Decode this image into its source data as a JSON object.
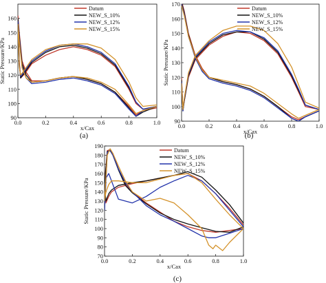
{
  "colors": {
    "Datum": "#c0392b",
    "NEW_S_10%": "#111111",
    "NEW_S_12%": "#2233aa",
    "NEW_S_15%": "#d4922a"
  },
  "chart_data": [
    {
      "type": "line",
      "panel_label": "(a)",
      "xlabel": "x/Cax",
      "ylabel": "Static Pressure/KPa",
      "xlim": [
        0,
        1.0
      ],
      "ylim": [
        90,
        170
      ],
      "xticks": [
        "0.0",
        "0.2",
        "0.4",
        "0.6",
        "0.8",
        "1.0"
      ],
      "yticks": [
        "90",
        "100",
        "110",
        "120",
        "130",
        "140",
        "150",
        "160"
      ],
      "legend_position": "top-right",
      "series": [
        {
          "name": "Datum",
          "color": "#c0392b",
          "x": [
            0,
            0.01,
            0.03,
            0.06,
            0.1,
            0.2,
            0.3,
            0.4,
            0.5,
            0.6,
            0.7,
            0.8,
            0.85,
            0.9,
            1.0
          ],
          "y": [
            162,
            150,
            130,
            122,
            116,
            116,
            118,
            119,
            117,
            114,
            108,
            98,
            92,
            95,
            97
          ]
        },
        {
          "name": "Datum",
          "color": "#c0392b",
          "x": [
            0,
            0.01,
            0.02,
            0.05,
            0.1,
            0.2,
            0.3,
            0.4,
            0.5,
            0.6,
            0.7,
            0.8,
            0.85,
            0.9,
            1.0
          ],
          "y": [
            162,
            130,
            118,
            121,
            128,
            134,
            138,
            140,
            138,
            134,
            126,
            110,
            100,
            96,
            98
          ]
        },
        {
          "name": "NEW_S_10%",
          "color": "#111111",
          "x": [
            0,
            0.01,
            0.03,
            0.06,
            0.1,
            0.2,
            0.3,
            0.4,
            0.5,
            0.6,
            0.7,
            0.8,
            0.85,
            0.9,
            1.0
          ],
          "y": [
            160,
            148,
            128,
            120,
            115,
            116,
            118,
            119,
            117,
            114,
            108,
            97,
            91,
            94,
            98
          ]
        },
        {
          "name": "NEW_S_10%",
          "color": "#111111",
          "x": [
            0,
            0.01,
            0.02,
            0.05,
            0.1,
            0.2,
            0.3,
            0.4,
            0.5,
            0.6,
            0.7,
            0.8,
            0.85,
            0.9,
            1.0
          ],
          "y": [
            160,
            128,
            118,
            122,
            129,
            136,
            140,
            141,
            139,
            135,
            127,
            111,
            101,
            96,
            98
          ]
        },
        {
          "name": "NEW_S_12%",
          "color": "#2233aa",
          "x": [
            0,
            0.01,
            0.03,
            0.06,
            0.1,
            0.2,
            0.3,
            0.4,
            0.5,
            0.6,
            0.7,
            0.8,
            0.85,
            0.9,
            1.0
          ],
          "y": [
            158,
            146,
            126,
            118,
            114,
            115,
            117,
            118,
            116,
            113,
            107,
            96,
            91,
            95,
            98
          ]
        },
        {
          "name": "NEW_S_12%",
          "color": "#2233aa",
          "x": [
            0,
            0.01,
            0.02,
            0.05,
            0.1,
            0.2,
            0.3,
            0.4,
            0.5,
            0.6,
            0.7,
            0.8,
            0.85,
            0.9,
            1.0
          ],
          "y": [
            158,
            127,
            119,
            123,
            130,
            137,
            141,
            142,
            140,
            136,
            128,
            112,
            101,
            96,
            98
          ]
        },
        {
          "name": "NEW_S_15%",
          "color": "#d4922a",
          "x": [
            0,
            0.01,
            0.03,
            0.06,
            0.1,
            0.2,
            0.3,
            0.4,
            0.5,
            0.6,
            0.7,
            0.8,
            0.85,
            0.9,
            1.0
          ],
          "y": [
            156,
            144,
            125,
            118,
            115,
            116,
            118,
            119,
            118,
            115,
            110,
            99,
            93,
            95,
            98
          ]
        },
        {
          "name": "NEW_S_15%",
          "color": "#d4922a",
          "x": [
            0,
            0.01,
            0.02,
            0.05,
            0.1,
            0.2,
            0.3,
            0.4,
            0.5,
            0.6,
            0.7,
            0.8,
            0.85,
            0.9,
            1.0
          ],
          "y": [
            156,
            126,
            120,
            124,
            131,
            138,
            141,
            142,
            142,
            139,
            131,
            115,
            104,
            98,
            99
          ]
        }
      ]
    },
    {
      "type": "line",
      "panel_label": "(b)",
      "xlabel": "x/Cax",
      "ylabel": "Static Pressure/KPa",
      "xlim": [
        0,
        1.0
      ],
      "ylim": [
        90,
        170
      ],
      "xticks": [
        "0.0",
        "0.2",
        "0.4",
        "0.6",
        "0.8",
        "1.0"
      ],
      "yticks": [
        "90",
        "100",
        "110",
        "120",
        "130",
        "140",
        "150",
        "160",
        "170"
      ],
      "legend_position": "top-right",
      "series": [
        {
          "name": "Datum",
          "color": "#c0392b",
          "x": [
            0,
            0.02,
            0.05,
            0.1,
            0.15,
            0.2,
            0.3,
            0.4,
            0.5,
            0.6,
            0.7,
            0.8,
            0.85,
            0.9,
            1.0
          ],
          "y": [
            172,
            165,
            150,
            135,
            126,
            120,
            117,
            115,
            112,
            107,
            100,
            93,
            91,
            93,
            97
          ]
        },
        {
          "name": "Datum",
          "color": "#c0392b",
          "x": [
            0,
            0.01,
            0.02,
            0.05,
            0.1,
            0.15,
            0.2,
            0.3,
            0.4,
            0.5,
            0.6,
            0.7,
            0.8,
            0.85,
            0.9,
            1.0
          ],
          "y": [
            120,
            98,
            104,
            120,
            132,
            137,
            142,
            148,
            151,
            150,
            145,
            136,
            120,
            110,
            100,
            98
          ]
        },
        {
          "name": "NEW_S_10%",
          "color": "#111111",
          "x": [
            0,
            0.02,
            0.05,
            0.1,
            0.15,
            0.2,
            0.3,
            0.4,
            0.5,
            0.6,
            0.7,
            0.8,
            0.85,
            0.9,
            1.0
          ],
          "y": [
            171,
            164,
            149,
            134,
            125,
            120,
            117,
            115,
            112,
            107,
            100,
            92,
            90,
            93,
            97
          ]
        },
        {
          "name": "NEW_S_10%",
          "color": "#111111",
          "x": [
            0,
            0.01,
            0.02,
            0.05,
            0.1,
            0.15,
            0.2,
            0.3,
            0.4,
            0.5,
            0.6,
            0.7,
            0.8,
            0.85,
            0.9,
            1.0
          ],
          "y": [
            118,
            97,
            104,
            121,
            133,
            138,
            143,
            149,
            151,
            151,
            146,
            137,
            121,
            111,
            101,
            98
          ]
        },
        {
          "name": "NEW_S_12%",
          "color": "#2233aa",
          "x": [
            0,
            0.02,
            0.05,
            0.1,
            0.15,
            0.2,
            0.3,
            0.4,
            0.5,
            0.6,
            0.7,
            0.8,
            0.85,
            0.9,
            1.0
          ],
          "y": [
            170,
            163,
            148,
            133,
            124,
            119,
            116,
            114,
            111,
            106,
            99,
            92,
            90,
            93,
            97
          ]
        },
        {
          "name": "NEW_S_12%",
          "color": "#2233aa",
          "x": [
            0,
            0.01,
            0.02,
            0.05,
            0.1,
            0.15,
            0.2,
            0.3,
            0.4,
            0.5,
            0.6,
            0.7,
            0.8,
            0.85,
            0.9,
            1.0
          ],
          "y": [
            117,
            97,
            105,
            122,
            134,
            139,
            144,
            150,
            152,
            151,
            147,
            138,
            122,
            112,
            101,
            98
          ]
        },
        {
          "name": "NEW_S_15%",
          "color": "#d4922a",
          "x": [
            0,
            0.02,
            0.05,
            0.1,
            0.15,
            0.2,
            0.3,
            0.4,
            0.5,
            0.6,
            0.7,
            0.8,
            0.85,
            0.9,
            1.0
          ],
          "y": [
            169,
            162,
            148,
            134,
            125,
            120,
            118,
            116,
            114,
            109,
            102,
            95,
            92,
            94,
            98
          ]
        },
        {
          "name": "NEW_S_15%",
          "color": "#d4922a",
          "x": [
            0,
            0.01,
            0.02,
            0.05,
            0.1,
            0.15,
            0.2,
            0.3,
            0.4,
            0.5,
            0.6,
            0.7,
            0.8,
            0.85,
            0.9,
            1.0
          ],
          "y": [
            116,
            98,
            106,
            123,
            135,
            140,
            145,
            152,
            155,
            155,
            152,
            143,
            127,
            115,
            103,
            99
          ]
        }
      ]
    },
    {
      "type": "line",
      "panel_label": "(c)",
      "xlabel": "x/Cax",
      "ylabel": "Static Pressure/KPa",
      "xlim": [
        0,
        1.0
      ],
      "ylim": [
        70,
        190
      ],
      "xticks": [
        "0.0",
        "0.2",
        "0.4",
        "0.6",
        "0.8",
        "1.0"
      ],
      "yticks": [
        "70",
        "80",
        "90",
        "100",
        "110",
        "120",
        "130",
        "140",
        "150",
        "160",
        "170",
        "180",
        "190"
      ],
      "legend_position": "top-right",
      "series": [
        {
          "name": "Datum",
          "color": "#c0392b",
          "x": [
            0,
            0.02,
            0.04,
            0.06,
            0.1,
            0.15,
            0.2,
            0.3,
            0.4,
            0.5,
            0.6,
            0.7,
            0.8,
            0.9,
            1.0
          ],
          "y": [
            150,
            185,
            186,
            182,
            165,
            148,
            140,
            128,
            118,
            108,
            102,
            98,
            96,
            98,
            100
          ]
        },
        {
          "name": "Datum",
          "color": "#c0392b",
          "x": [
            0,
            0.01,
            0.03,
            0.05,
            0.1,
            0.2,
            0.3,
            0.4,
            0.5,
            0.6,
            0.7,
            0.8,
            0.9,
            1.0
          ],
          "y": [
            150,
            128,
            135,
            140,
            145,
            149,
            152,
            155,
            158,
            160,
            152,
            138,
            122,
            104
          ]
        },
        {
          "name": "NEW_S_10%",
          "color": "#111111",
          "x": [
            0,
            0.02,
            0.04,
            0.06,
            0.1,
            0.15,
            0.2,
            0.3,
            0.4,
            0.5,
            0.6,
            0.7,
            0.8,
            0.9,
            1.0
          ],
          "y": [
            148,
            184,
            185,
            180,
            164,
            147,
            139,
            127,
            117,
            110,
            105,
            101,
            97,
            96,
            102
          ]
        },
        {
          "name": "NEW_S_10%",
          "color": "#111111",
          "x": [
            0,
            0.01,
            0.03,
            0.05,
            0.1,
            0.2,
            0.3,
            0.4,
            0.5,
            0.6,
            0.7,
            0.8,
            0.9,
            1.0
          ],
          "y": [
            148,
            130,
            138,
            142,
            147,
            150,
            152,
            155,
            158,
            162,
            156,
            142,
            126,
            106
          ]
        },
        {
          "name": "NEW_S_12%",
          "color": "#2233aa",
          "x": [
            0,
            0.02,
            0.04,
            0.06,
            0.1,
            0.15,
            0.2,
            0.3,
            0.4,
            0.5,
            0.6,
            0.7,
            0.75,
            0.8,
            0.9,
            1.0
          ],
          "y": [
            120,
            183,
            186,
            180,
            165,
            150,
            140,
            125,
            115,
            108,
            100,
            92,
            90,
            90,
            95,
            100
          ]
        },
        {
          "name": "NEW_S_12%",
          "color": "#2233aa",
          "x": [
            0,
            0.01,
            0.03,
            0.05,
            0.08,
            0.1,
            0.2,
            0.3,
            0.4,
            0.5,
            0.6,
            0.7,
            0.8,
            0.9,
            1.0
          ],
          "y": [
            120,
            155,
            160,
            152,
            140,
            132,
            128,
            135,
            145,
            152,
            158,
            152,
            138,
            120,
            102
          ]
        },
        {
          "name": "NEW_S_15%",
          "color": "#d4922a",
          "x": [
            0,
            0.02,
            0.04,
            0.06,
            0.1,
            0.15,
            0.2,
            0.3,
            0.4,
            0.5,
            0.6,
            0.7,
            0.75,
            0.78,
            0.8,
            0.85,
            0.9,
            1.0
          ],
          "y": [
            130,
            180,
            187,
            182,
            168,
            152,
            140,
            130,
            133,
            128,
            115,
            100,
            82,
            78,
            82,
            76,
            85,
            100
          ]
        },
        {
          "name": "NEW_S_15%",
          "color": "#d4922a",
          "x": [
            0,
            0.01,
            0.03,
            0.05,
            0.1,
            0.2,
            0.3,
            0.4,
            0.5,
            0.6,
            0.7,
            0.8,
            0.9,
            1.0
          ],
          "y": [
            130,
            140,
            148,
            152,
            152,
            150,
            150,
            154,
            158,
            160,
            150,
            132,
            115,
            100
          ]
        }
      ]
    }
  ]
}
